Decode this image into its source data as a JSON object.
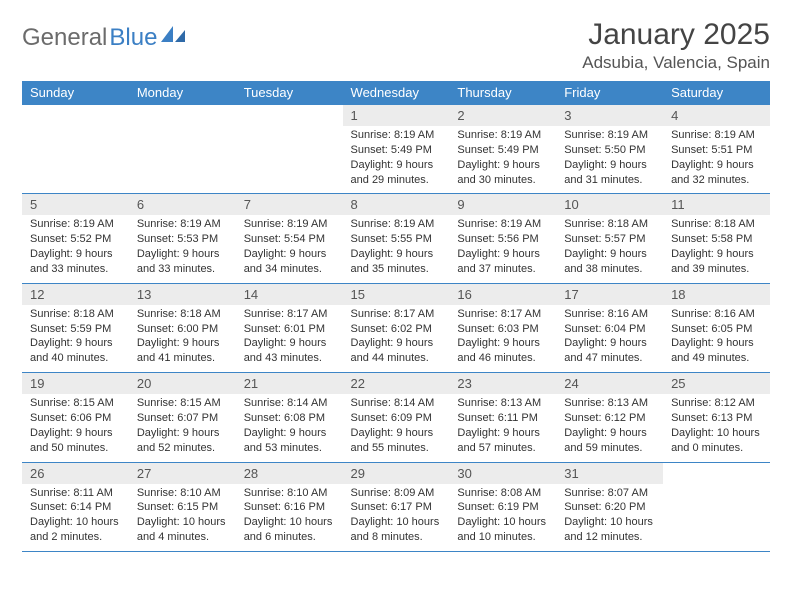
{
  "brand": {
    "name_part1": "General",
    "name_part2": "Blue"
  },
  "title": "January 2025",
  "location": "Adsubia, Valencia, Spain",
  "colors": {
    "header_bg": "#3d85c6",
    "header_text": "#ffffff",
    "daynum_bg": "#ececec",
    "border": "#3d85c6",
    "body_text": "#333333",
    "title_text": "#444444",
    "brand_gray": "#6b6b6b",
    "brand_blue": "#3b7fc4"
  },
  "weekdays": [
    "Sunday",
    "Monday",
    "Tuesday",
    "Wednesday",
    "Thursday",
    "Friday",
    "Saturday"
  ],
  "weeks": [
    [
      null,
      null,
      null,
      {
        "n": "1",
        "sr": "8:19 AM",
        "ss": "5:49 PM",
        "dl": "9 hours and 29 minutes."
      },
      {
        "n": "2",
        "sr": "8:19 AM",
        "ss": "5:49 PM",
        "dl": "9 hours and 30 minutes."
      },
      {
        "n": "3",
        "sr": "8:19 AM",
        "ss": "5:50 PM",
        "dl": "9 hours and 31 minutes."
      },
      {
        "n": "4",
        "sr": "8:19 AM",
        "ss": "5:51 PM",
        "dl": "9 hours and 32 minutes."
      }
    ],
    [
      {
        "n": "5",
        "sr": "8:19 AM",
        "ss": "5:52 PM",
        "dl": "9 hours and 33 minutes."
      },
      {
        "n": "6",
        "sr": "8:19 AM",
        "ss": "5:53 PM",
        "dl": "9 hours and 33 minutes."
      },
      {
        "n": "7",
        "sr": "8:19 AM",
        "ss": "5:54 PM",
        "dl": "9 hours and 34 minutes."
      },
      {
        "n": "8",
        "sr": "8:19 AM",
        "ss": "5:55 PM",
        "dl": "9 hours and 35 minutes."
      },
      {
        "n": "9",
        "sr": "8:19 AM",
        "ss": "5:56 PM",
        "dl": "9 hours and 37 minutes."
      },
      {
        "n": "10",
        "sr": "8:18 AM",
        "ss": "5:57 PM",
        "dl": "9 hours and 38 minutes."
      },
      {
        "n": "11",
        "sr": "8:18 AM",
        "ss": "5:58 PM",
        "dl": "9 hours and 39 minutes."
      }
    ],
    [
      {
        "n": "12",
        "sr": "8:18 AM",
        "ss": "5:59 PM",
        "dl": "9 hours and 40 minutes."
      },
      {
        "n": "13",
        "sr": "8:18 AM",
        "ss": "6:00 PM",
        "dl": "9 hours and 41 minutes."
      },
      {
        "n": "14",
        "sr": "8:17 AM",
        "ss": "6:01 PM",
        "dl": "9 hours and 43 minutes."
      },
      {
        "n": "15",
        "sr": "8:17 AM",
        "ss": "6:02 PM",
        "dl": "9 hours and 44 minutes."
      },
      {
        "n": "16",
        "sr": "8:17 AM",
        "ss": "6:03 PM",
        "dl": "9 hours and 46 minutes."
      },
      {
        "n": "17",
        "sr": "8:16 AM",
        "ss": "6:04 PM",
        "dl": "9 hours and 47 minutes."
      },
      {
        "n": "18",
        "sr": "8:16 AM",
        "ss": "6:05 PM",
        "dl": "9 hours and 49 minutes."
      }
    ],
    [
      {
        "n": "19",
        "sr": "8:15 AM",
        "ss": "6:06 PM",
        "dl": "9 hours and 50 minutes."
      },
      {
        "n": "20",
        "sr": "8:15 AM",
        "ss": "6:07 PM",
        "dl": "9 hours and 52 minutes."
      },
      {
        "n": "21",
        "sr": "8:14 AM",
        "ss": "6:08 PM",
        "dl": "9 hours and 53 minutes."
      },
      {
        "n": "22",
        "sr": "8:14 AM",
        "ss": "6:09 PM",
        "dl": "9 hours and 55 minutes."
      },
      {
        "n": "23",
        "sr": "8:13 AM",
        "ss": "6:11 PM",
        "dl": "9 hours and 57 minutes."
      },
      {
        "n": "24",
        "sr": "8:13 AM",
        "ss": "6:12 PM",
        "dl": "9 hours and 59 minutes."
      },
      {
        "n": "25",
        "sr": "8:12 AM",
        "ss": "6:13 PM",
        "dl": "10 hours and 0 minutes."
      }
    ],
    [
      {
        "n": "26",
        "sr": "8:11 AM",
        "ss": "6:14 PM",
        "dl": "10 hours and 2 minutes."
      },
      {
        "n": "27",
        "sr": "8:10 AM",
        "ss": "6:15 PM",
        "dl": "10 hours and 4 minutes."
      },
      {
        "n": "28",
        "sr": "8:10 AM",
        "ss": "6:16 PM",
        "dl": "10 hours and 6 minutes."
      },
      {
        "n": "29",
        "sr": "8:09 AM",
        "ss": "6:17 PM",
        "dl": "10 hours and 8 minutes."
      },
      {
        "n": "30",
        "sr": "8:08 AM",
        "ss": "6:19 PM",
        "dl": "10 hours and 10 minutes."
      },
      {
        "n": "31",
        "sr": "8:07 AM",
        "ss": "6:20 PM",
        "dl": "10 hours and 12 minutes."
      },
      null
    ]
  ],
  "labels": {
    "sunrise": "Sunrise:",
    "sunset": "Sunset:",
    "daylight": "Daylight:"
  }
}
